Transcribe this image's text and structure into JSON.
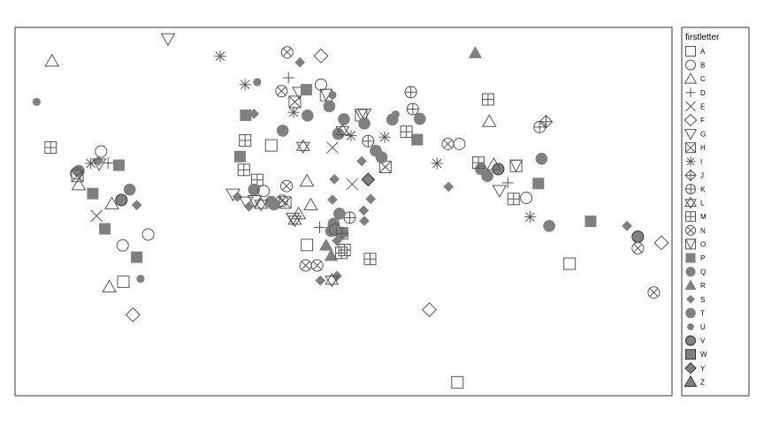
{
  "chart_data": {
    "type": "scatter",
    "title": "",
    "xlabel": "",
    "ylabel": "",
    "grid": false,
    "xlim": [
      0,
      100
    ],
    "ylim": [
      0,
      100
    ],
    "legend_position": "right",
    "legend_title": "firstletter",
    "colors": {
      "fill": "#808080",
      "stroke": "#555555",
      "hollow_stroke": "#555555"
    },
    "legend": [
      {
        "label": "A",
        "shape": "open-square"
      },
      {
        "label": "B",
        "shape": "open-circle"
      },
      {
        "label": "C",
        "shape": "open-triangle"
      },
      {
        "label": "D",
        "shape": "plus"
      },
      {
        "label": "E",
        "shape": "cross"
      },
      {
        "label": "F",
        "shape": "open-diamond"
      },
      {
        "label": "G",
        "shape": "open-triangle-down"
      },
      {
        "label": "H",
        "shape": "square-cross"
      },
      {
        "label": "I",
        "shape": "asterisk"
      },
      {
        "label": "J",
        "shape": "diamond-plus"
      },
      {
        "label": "K",
        "shape": "circle-plus"
      },
      {
        "label": "L",
        "shape": "star-of-david"
      },
      {
        "label": "M",
        "shape": "square-plus"
      },
      {
        "label": "N",
        "shape": "circle-cross"
      },
      {
        "label": "O",
        "shape": "square-triangle"
      },
      {
        "label": "P",
        "shape": "filled-square"
      },
      {
        "label": "Q",
        "shape": "filled-circle"
      },
      {
        "label": "R",
        "shape": "filled-triangle"
      },
      {
        "label": "S",
        "shape": "filled-diamond"
      },
      {
        "label": "T",
        "shape": "filled-circle-large"
      },
      {
        "label": "U",
        "shape": "filled-circle-small"
      },
      {
        "label": "V",
        "shape": "filled-circle-outlined"
      },
      {
        "label": "W",
        "shape": "filled-square-outlined"
      },
      {
        "label": "Y",
        "shape": "filled-diamond-outlined"
      },
      {
        "label": "Z",
        "shape": "filled-triangle-outlined"
      }
    ],
    "points": [
      [
        "G",
        22.6,
        98.0
      ],
      [
        "R",
        70.8,
        94.1
      ],
      [
        "C",
        4.4,
        91.9
      ],
      [
        "I",
        30.8,
        93.2
      ],
      [
        "N",
        41.3,
        94.3
      ],
      [
        "F",
        46.6,
        93.3
      ],
      [
        "S",
        43.3,
        91.5
      ],
      [
        "U",
        2.0,
        80.5
      ],
      [
        "M",
        72.8,
        81.2
      ],
      [
        "C",
        73.0,
        75.1
      ],
      [
        "J",
        81.9,
        75.0
      ],
      [
        "K",
        80.9,
        73.5
      ],
      [
        "K",
        60.7,
        83.2
      ],
      [
        "P",
        61.7,
        70.0
      ],
      [
        "I",
        34.7,
        85.3
      ],
      [
        "U",
        36.6,
        86.0
      ],
      [
        "D",
        41.5,
        87.2
      ],
      [
        "G",
        43.2,
        83.1
      ],
      [
        "O",
        47.4,
        82.4
      ],
      [
        "B",
        46.6,
        85.3
      ],
      [
        "P",
        44.3,
        83.9
      ],
      [
        "N",
        40.4,
        83.5
      ],
      [
        "H",
        42.5,
        80.5
      ],
      [
        "T",
        47.9,
        79.3
      ],
      [
        "P",
        34.8,
        76.8
      ],
      [
        "S",
        36.1,
        77.2
      ],
      [
        "U",
        48.4,
        82.4
      ],
      [
        "T",
        44.5,
        76.7
      ],
      [
        "T",
        40.6,
        72.5
      ],
      [
        "I",
        42.3,
        77.6
      ],
      [
        "M",
        34.7,
        69.8
      ],
      [
        "A",
        38.8,
        68.4
      ],
      [
        "L",
        43.8,
        68.1
      ],
      [
        "E",
        48.4,
        67.8
      ],
      [
        "T",
        50.2,
        75.7
      ],
      [
        "T",
        49.3,
        71.6
      ],
      [
        "I",
        51.3,
        71.1
      ],
      [
        "O",
        52.9,
        76.8
      ],
      [
        "L",
        50.0,
        72.5
      ],
      [
        "G",
        53.4,
        77.1
      ],
      [
        "T",
        53.4,
        74.5
      ],
      [
        "U",
        58.3,
        77.0
      ],
      [
        "T",
        57.8,
        75.6
      ],
      [
        "I",
        56.6,
        70.7
      ],
      [
        "K",
        54.0,
        69.6
      ],
      [
        "T",
        55.2,
        66.9
      ],
      [
        "K",
        61.0,
        78.5
      ],
      [
        "T",
        62.1,
        75.8
      ],
      [
        "M",
        60.0,
        72.2
      ],
      [
        "N",
        66.5,
        68.8
      ],
      [
        "B",
        68.3,
        68.8
      ],
      [
        "I",
        64.8,
        63.4
      ],
      [
        "S",
        53.0,
        64.0
      ],
      [
        "H",
        56.7,
        62.4
      ],
      [
        "T",
        56.1,
        65.1
      ],
      [
        "P",
        33.9,
        65.3
      ],
      [
        "M",
        34.5,
        61.6
      ],
      [
        "M",
        36.6,
        58.8
      ],
      [
        "T",
        36.1,
        56.1
      ],
      [
        "S",
        48.7,
        59.0
      ],
      [
        "C",
        44.4,
        58.5
      ],
      [
        "E",
        51.5,
        57.6
      ],
      [
        "Y",
        54.0,
        58.9
      ],
      [
        "S",
        54.4,
        53.5
      ],
      [
        "S",
        48.4,
        53.3
      ],
      [
        "K",
        51.1,
        48.3
      ],
      [
        "B",
        37.6,
        55.7
      ],
      [
        "N",
        41.2,
        57.1
      ],
      [
        "T",
        38.8,
        52.7
      ],
      [
        "H",
        41.0,
        52.5
      ],
      [
        "G",
        32.8,
        54.8
      ],
      [
        "S",
        33.5,
        54.1
      ],
      [
        "G",
        34.9,
        52.6
      ],
      [
        "G",
        36.2,
        53.0
      ],
      [
        "S",
        35.3,
        51.4
      ],
      [
        "N",
        40.5,
        53.0
      ],
      [
        "L",
        37.2,
        52.0
      ],
      [
        "C",
        45.0,
        51.9
      ],
      [
        "T",
        39.2,
        52.0
      ],
      [
        "T",
        49.5,
        49.4
      ],
      [
        "S",
        53.3,
        50.3
      ],
      [
        "S",
        53.4,
        47.4
      ],
      [
        "G",
        42.2,
        48.1
      ],
      [
        "L",
        42.5,
        47.6
      ],
      [
        "C",
        43.1,
        49.4
      ],
      [
        "D",
        46.4,
        45.6
      ],
      [
        "T",
        48.6,
        46.6
      ],
      [
        "T",
        48.2,
        44.6
      ],
      [
        "B",
        48.8,
        45.0
      ],
      [
        "T",
        49.9,
        44.1
      ],
      [
        "U",
        50.3,
        43.9
      ],
      [
        "M",
        49.9,
        43.9
      ],
      [
        "S",
        49.1,
        41.9
      ],
      [
        "R",
        47.4,
        40.6
      ],
      [
        "R",
        48.2,
        37.7
      ],
      [
        "M",
        50.3,
        39.3
      ],
      [
        "M",
        49.8,
        38.5
      ],
      [
        "A",
        44.4,
        40.7
      ],
      [
        "M",
        54.3,
        36.8
      ],
      [
        "N",
        44.2,
        35.0
      ],
      [
        "N",
        46.0,
        35.0
      ],
      [
        "S",
        46.5,
        30.8
      ],
      [
        "S",
        49.1,
        32.1
      ],
      [
        "L",
        48.3,
        30.9
      ],
      [
        "T",
        71.7,
        61.8
      ],
      [
        "V",
        74.4,
        61.8
      ],
      [
        "C",
        73.7,
        63.1
      ],
      [
        "T",
        72.7,
        59.9
      ],
      [
        "M",
        71.3,
        63.6
      ],
      [
        "D",
        75.9,
        58.0
      ],
      [
        "O",
        77.2,
        62.7
      ],
      [
        "G",
        74.6,
        55.8
      ],
      [
        "T",
        81.2,
        64.7
      ],
      [
        "P",
        80.7,
        57.8
      ],
      [
        "S",
        66.6,
        56.9
      ],
      [
        "M",
        76.8,
        53.5
      ],
      [
        "B",
        78.8,
        53.8
      ],
      [
        "I",
        79.4,
        48.5
      ],
      [
        "T",
        82.4,
        46.0
      ],
      [
        "P",
        88.9,
        47.3
      ],
      [
        "S",
        94.6,
        46.0
      ],
      [
        "V",
        96.3,
        43.0
      ],
      [
        "N",
        96.3,
        39.8
      ],
      [
        "F",
        100.0,
        41.3
      ],
      [
        "A",
        85.6,
        35.5
      ],
      [
        "N",
        98.8,
        27.5
      ],
      [
        "F",
        63.6,
        22.7
      ],
      [
        "A",
        68.0,
        2.5
      ],
      [
        "M",
        4.2,
        67.8
      ],
      [
        "B",
        12.1,
        66.7
      ],
      [
        "S",
        11.7,
        64.1
      ],
      [
        "I",
        10.5,
        63.4
      ],
      [
        "G",
        11.8,
        63.2
      ],
      [
        "D",
        13.2,
        63.5
      ],
      [
        "P",
        14.9,
        62.9
      ],
      [
        "T",
        8.6,
        61.3
      ],
      [
        "B",
        8.2,
        60.6
      ],
      [
        "H",
        8.4,
        59.9
      ],
      [
        "C",
        8.6,
        57.5
      ],
      [
        "T",
        16.6,
        56.1
      ],
      [
        "V",
        15.3,
        53.2
      ],
      [
        "S",
        17.7,
        51.8
      ],
      [
        "C",
        13.8,
        52.2
      ],
      [
        "P",
        10.8,
        55.0
      ],
      [
        "E",
        11.4,
        48.8
      ],
      [
        "P",
        12.7,
        45.2
      ],
      [
        "B",
        19.5,
        43.6
      ],
      [
        "B",
        15.5,
        40.6
      ],
      [
        "P",
        17.7,
        37.3
      ],
      [
        "A",
        15.6,
        30.5
      ],
      [
        "U",
        18.3,
        31.3
      ],
      [
        "C",
        13.4,
        29.1
      ],
      [
        "F",
        17.1,
        21.3
      ]
    ]
  }
}
